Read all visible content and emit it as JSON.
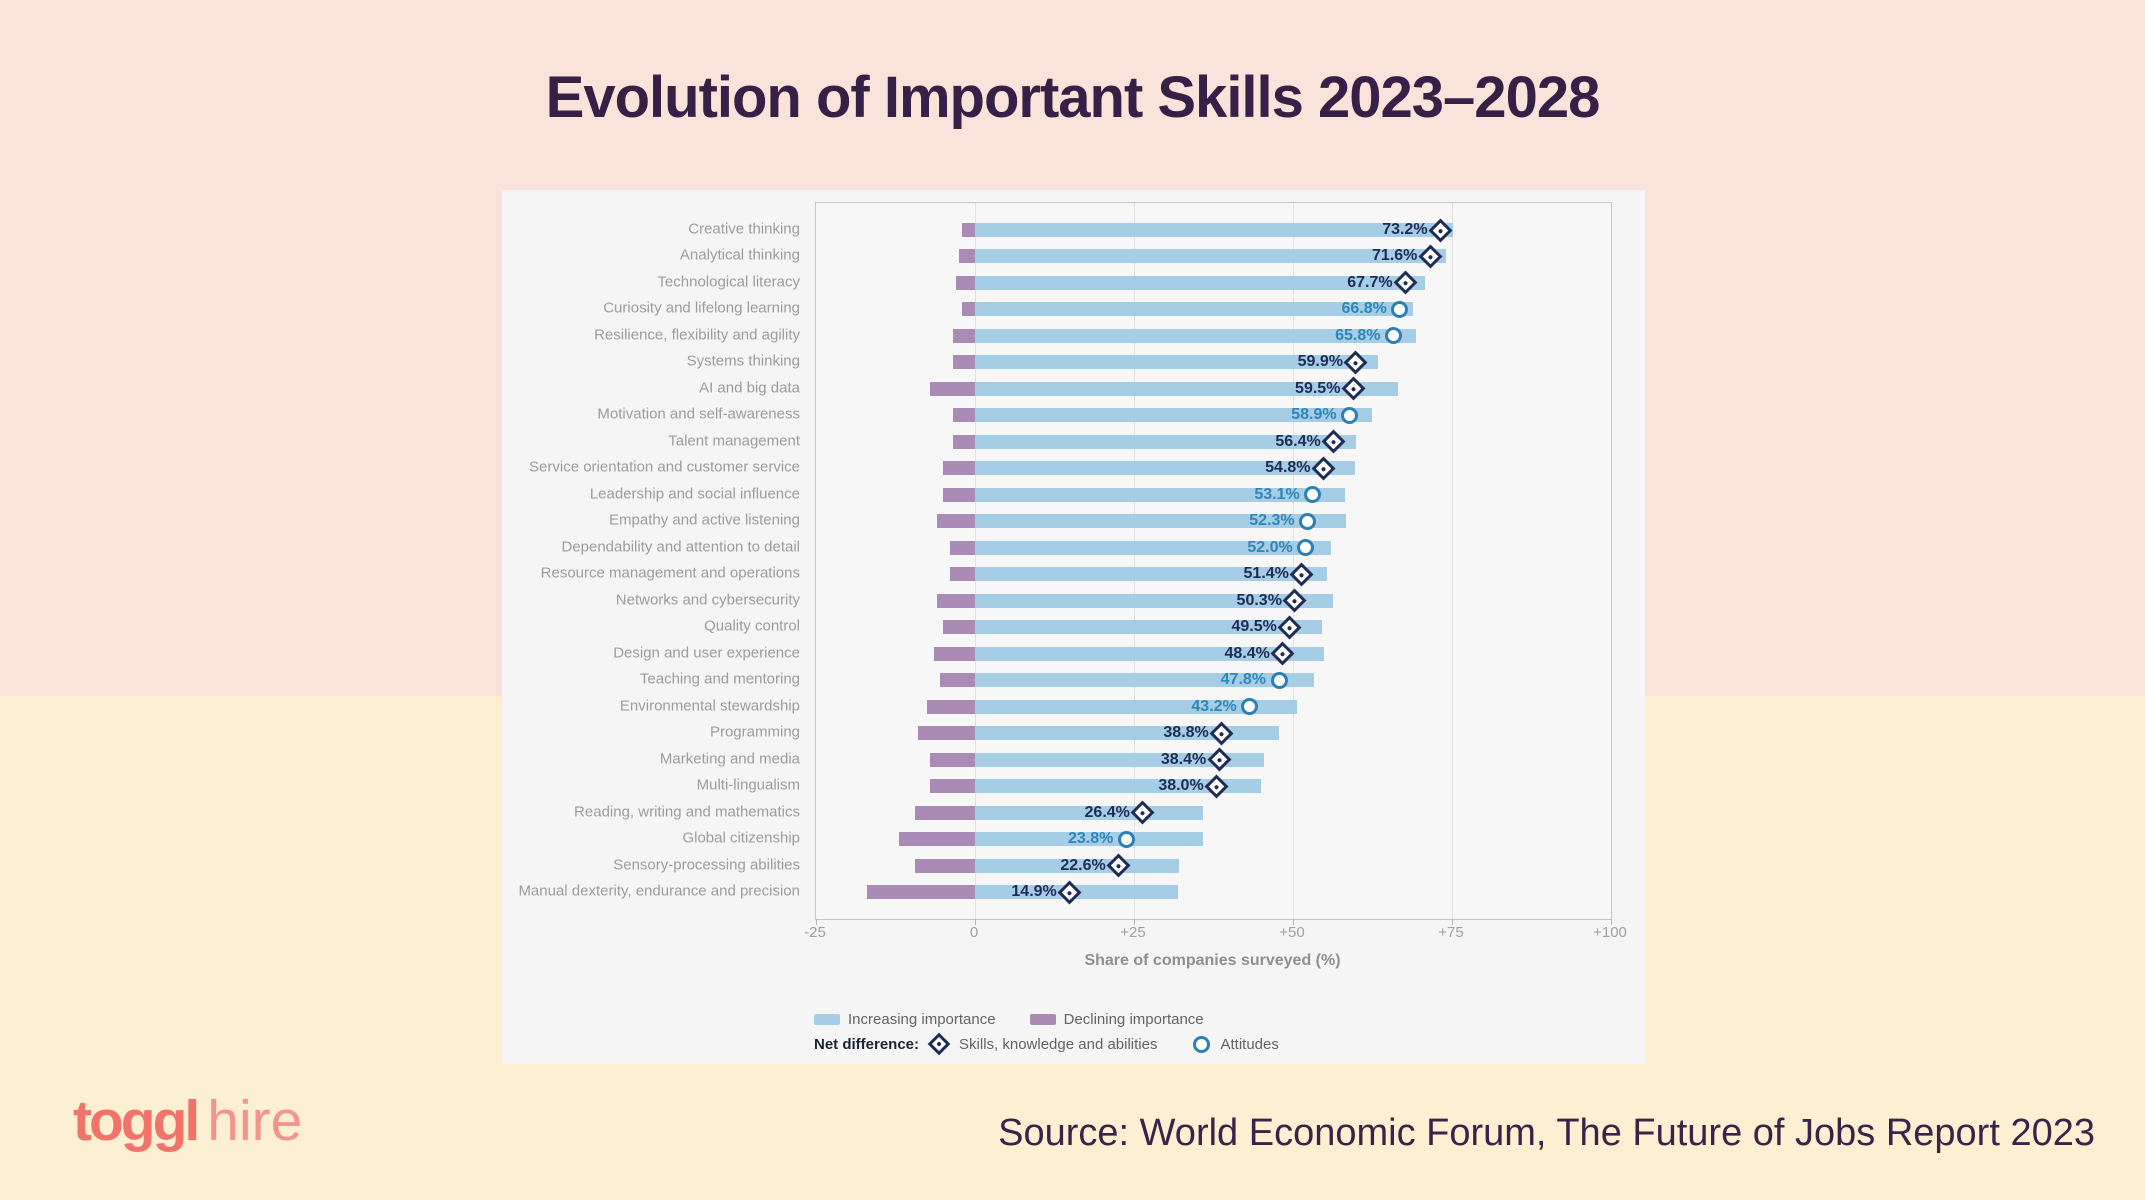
{
  "page": {
    "title": "Evolution of Important Skills 2023–2028",
    "source_text": "Source: World Economic Forum, The Future of Jobs Report 2023",
    "logo": {
      "word1": "toggl",
      "word2": "hire"
    },
    "background": {
      "top_color": "#fae3da",
      "bottom_color": "#fdf0d2"
    }
  },
  "chart_data": {
    "type": "bar",
    "orientation": "horizontal",
    "xlabel": "Share of companies surveyed (%)",
    "xlim": [
      -25,
      100
    ],
    "grid": true,
    "x_ticks": [
      {
        "value": -25,
        "label": "-25"
      },
      {
        "value": 0,
        "label": "0"
      },
      {
        "value": 25,
        "label": "+25"
      },
      {
        "value": 50,
        "label": "+50"
      },
      {
        "value": 75,
        "label": "+75"
      },
      {
        "value": 100,
        "label": "+100"
      }
    ],
    "legend": {
      "position": "bottom",
      "increasing_label": "Increasing importance",
      "declining_label": "Declining importance",
      "net_prefix": "Net difference:",
      "diamond_label": "Skills, knowledge and abilities",
      "circle_label": "Attitudes"
    },
    "colors": {
      "increasing_bar": "#a5cde6",
      "declining_bar": "#a98bb6",
      "diamond_marker": "#1e2c56",
      "circle_marker": "#2b7fb4",
      "value_text_diamond": "#1e2c56",
      "value_text_circle": "#2f86b8"
    },
    "notes": "Bars: share of companies saying skill is increasing (blue, right) or declining (purple, left) in importance; marker shows net difference.",
    "rows": [
      {
        "label": "Creative thinking",
        "net": 73.2,
        "net_label": "73.2%",
        "marker": "diamond",
        "increasing": 75.2,
        "declining": 2.0
      },
      {
        "label": "Analytical thinking",
        "net": 71.6,
        "net_label": "71.6%",
        "marker": "diamond",
        "increasing": 74.1,
        "declining": 2.5
      },
      {
        "label": "Technological literacy",
        "net": 67.7,
        "net_label": "67.7%",
        "marker": "diamond",
        "increasing": 70.7,
        "declining": 3.0
      },
      {
        "label": "Curiosity and lifelong learning",
        "net": 66.8,
        "net_label": "66.8%",
        "marker": "circle",
        "increasing": 68.8,
        "declining": 2.0
      },
      {
        "label": "Resilience, flexibility and agility",
        "net": 65.8,
        "net_label": "65.8%",
        "marker": "circle",
        "increasing": 69.3,
        "declining": 3.5
      },
      {
        "label": "Systems thinking",
        "net": 59.9,
        "net_label": "59.9%",
        "marker": "diamond",
        "increasing": 63.4,
        "declining": 3.5
      },
      {
        "label": "AI and big data",
        "net": 59.5,
        "net_label": "59.5%",
        "marker": "diamond",
        "increasing": 66.5,
        "declining": 7.0
      },
      {
        "label": "Motivation and self-awareness",
        "net": 58.9,
        "net_label": "58.9%",
        "marker": "circle",
        "increasing": 62.4,
        "declining": 3.5
      },
      {
        "label": "Talent management",
        "net": 56.4,
        "net_label": "56.4%",
        "marker": "diamond",
        "increasing": 59.9,
        "declining": 3.5
      },
      {
        "label": "Service orientation and customer service",
        "net": 54.8,
        "net_label": "54.8%",
        "marker": "diamond",
        "increasing": 59.8,
        "declining": 5.0
      },
      {
        "label": "Leadership and social influence",
        "net": 53.1,
        "net_label": "53.1%",
        "marker": "circle",
        "increasing": 58.1,
        "declining": 5.0
      },
      {
        "label": "Empathy and active listening",
        "net": 52.3,
        "net_label": "52.3%",
        "marker": "circle",
        "increasing": 58.3,
        "declining": 6.0
      },
      {
        "label": "Dependability and attention to detail",
        "net": 52.0,
        "net_label": "52.0%",
        "marker": "circle",
        "increasing": 56.0,
        "declining": 4.0
      },
      {
        "label": "Resource management and operations",
        "net": 51.4,
        "net_label": "51.4%",
        "marker": "diamond",
        "increasing": 55.4,
        "declining": 4.0
      },
      {
        "label": "Networks and cybersecurity",
        "net": 50.3,
        "net_label": "50.3%",
        "marker": "diamond",
        "increasing": 56.3,
        "declining": 6.0
      },
      {
        "label": "Quality control",
        "net": 49.5,
        "net_label": "49.5%",
        "marker": "diamond",
        "increasing": 54.5,
        "declining": 5.0
      },
      {
        "label": "Design and user experience",
        "net": 48.4,
        "net_label": "48.4%",
        "marker": "diamond",
        "increasing": 54.9,
        "declining": 6.5
      },
      {
        "label": "Teaching and mentoring",
        "net": 47.8,
        "net_label": "47.8%",
        "marker": "circle",
        "increasing": 53.3,
        "declining": 5.5
      },
      {
        "label": "Environmental stewardship",
        "net": 43.2,
        "net_label": "43.2%",
        "marker": "circle",
        "increasing": 50.7,
        "declining": 7.5
      },
      {
        "label": "Programming",
        "net": 38.8,
        "net_label": "38.8%",
        "marker": "diamond",
        "increasing": 47.8,
        "declining": 9.0
      },
      {
        "label": "Marketing and media",
        "net": 38.4,
        "net_label": "38.4%",
        "marker": "diamond",
        "increasing": 45.4,
        "declining": 7.0
      },
      {
        "label": "Multi-lingualism",
        "net": 38.0,
        "net_label": "38.0%",
        "marker": "diamond",
        "increasing": 45.0,
        "declining": 7.0
      },
      {
        "label": "Reading, writing and mathematics",
        "net": 26.4,
        "net_label": "26.4%",
        "marker": "diamond",
        "increasing": 35.9,
        "declining": 9.5
      },
      {
        "label": "Global citizenship",
        "net": 23.8,
        "net_label": "23.8%",
        "marker": "circle",
        "increasing": 35.8,
        "declining": 12.0
      },
      {
        "label": "Sensory-processing abilities",
        "net": 22.6,
        "net_label": "22.6%",
        "marker": "diamond",
        "increasing": 32.1,
        "declining": 9.5
      },
      {
        "label": "Manual dexterity, endurance and precision",
        "net": 14.9,
        "net_label": "14.9%",
        "marker": "diamond",
        "increasing": 31.9,
        "declining": 17.0
      }
    ]
  }
}
